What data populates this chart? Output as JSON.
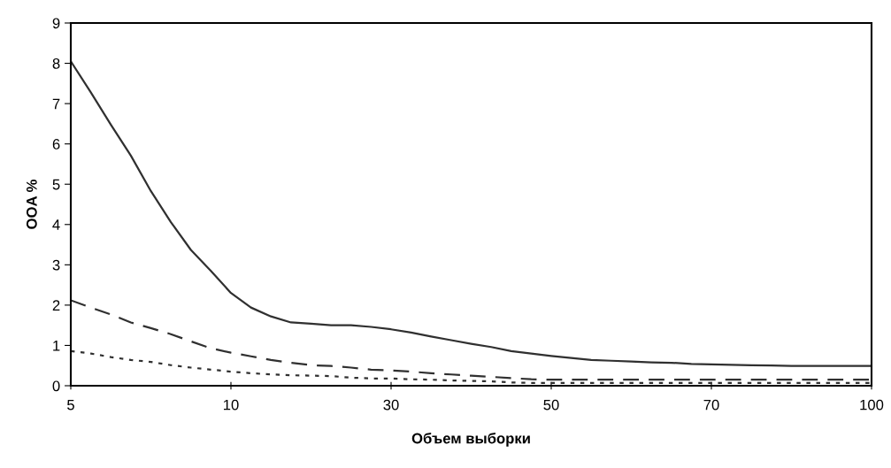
{
  "chart_data": {
    "type": "line",
    "xlabel": "Объем выборки",
    "ylabel": "OOA %",
    "categories": [
      "5",
      null,
      null,
      null,
      null,
      null,
      null,
      null,
      "10",
      null,
      null,
      null,
      null,
      null,
      null,
      null,
      "30",
      null,
      null,
      null,
      null,
      null,
      null,
      null,
      "50",
      null,
      null,
      null,
      null,
      null,
      null,
      null,
      "70",
      null,
      null,
      null,
      null,
      null,
      null,
      null,
      "100"
    ],
    "series": [
      {
        "color": "#303030",
        "line_style": "solid",
        "values": [
          8.05,
          7.28,
          6.48,
          5.71,
          4.83,
          4.06,
          3.37,
          2.85,
          2.3,
          1.94,
          1.72,
          1.57,
          1.54,
          1.5,
          1.5,
          1.46,
          1.4,
          1.32,
          1.22,
          1.13,
          1.04,
          0.96,
          0.86,
          0.8,
          0.74,
          0.69,
          0.64,
          0.62,
          0.6,
          0.58,
          0.57,
          0.54,
          0.53,
          0.52,
          0.51,
          0.5,
          0.49,
          0.49,
          0.49,
          0.49,
          0.49
        ]
      },
      {
        "color": "#303030",
        "line_style": "dashed",
        "values": [
          2.12,
          1.94,
          1.77,
          1.57,
          1.43,
          1.28,
          1.1,
          0.93,
          0.82,
          0.73,
          0.64,
          0.57,
          0.51,
          0.49,
          0.45,
          0.4,
          0.38,
          0.35,
          0.31,
          0.28,
          0.25,
          0.22,
          0.19,
          0.16,
          0.15,
          0.15,
          0.15,
          0.15,
          0.15,
          0.15,
          0.15,
          0.15,
          0.15,
          0.15,
          0.15,
          0.15,
          0.15,
          0.15,
          0.15,
          0.15,
          0.15
        ]
      },
      {
        "color": "#303030",
        "line_style": "dotted",
        "values": [
          0.86,
          0.8,
          0.71,
          0.64,
          0.59,
          0.51,
          0.45,
          0.4,
          0.35,
          0.31,
          0.28,
          0.26,
          0.25,
          0.24,
          0.2,
          0.18,
          0.18,
          0.16,
          0.15,
          0.13,
          0.12,
          0.11,
          0.08,
          0.07,
          0.07,
          0.07,
          0.07,
          0.07,
          0.07,
          0.07,
          0.07,
          0.07,
          0.07,
          0.07,
          0.07,
          0.07,
          0.07,
          0.07,
          0.07,
          0.07,
          0.07
        ]
      }
    ],
    "ylim": [
      0,
      9
    ],
    "yticks": [
      0,
      1,
      2,
      3,
      4,
      5,
      6,
      7,
      8,
      9
    ],
    "grid": false,
    "marker": "none"
  }
}
